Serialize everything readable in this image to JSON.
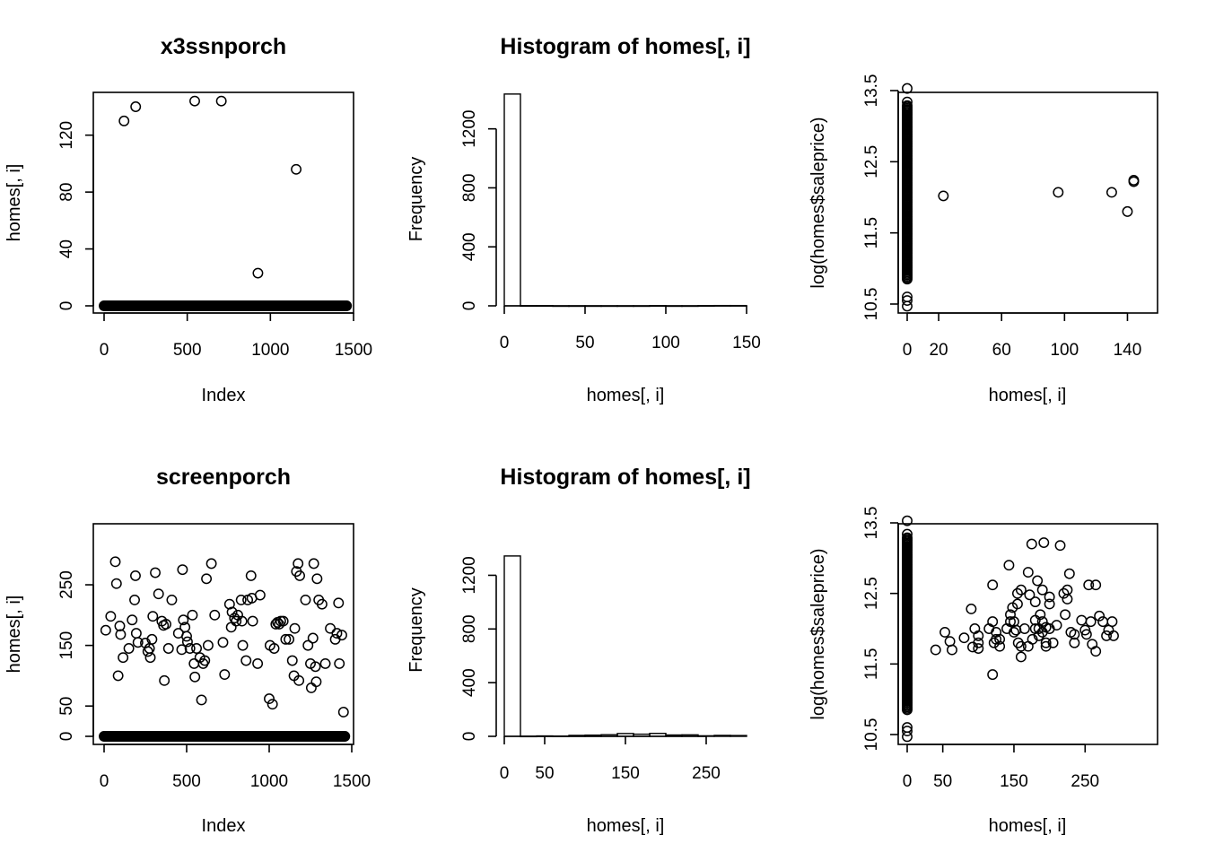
{
  "chart_data": [
    {
      "type": "scatter",
      "title": "x3ssnporch",
      "xlabel": "Index",
      "ylabel": "homes[, i]",
      "xlim": [
        0,
        1500
      ],
      "ylim": [
        0,
        140
      ],
      "xticks": [
        0,
        500,
        1000,
        1500
      ],
      "yticks": [
        0,
        40,
        80,
        120
      ],
      "zero_band": {
        "x_from": 0,
        "x_to": 1460,
        "y": 0
      },
      "points": [
        [
          120,
          130
        ],
        [
          190,
          140
        ],
        [
          545,
          144
        ],
        [
          705,
          144
        ],
        [
          925,
          23
        ],
        [
          1155,
          96
        ]
      ]
    },
    {
      "type": "bar",
      "title": "Histogram of homes[, i]",
      "xlabel": "homes[, i]",
      "ylabel": "Frequency",
      "xlim": [
        0,
        150
      ],
      "ylim": [
        0,
        1350
      ],
      "xticks": [
        0,
        50,
        100,
        150
      ],
      "yticks": [
        0,
        400,
        800,
        1200
      ],
      "bins": [
        [
          0,
          10,
          1436
        ],
        [
          10,
          20,
          1
        ],
        [
          20,
          30,
          1
        ],
        [
          30,
          40,
          0
        ],
        [
          40,
          50,
          0
        ],
        [
          50,
          60,
          0
        ],
        [
          60,
          70,
          0
        ],
        [
          70,
          80,
          0
        ],
        [
          80,
          90,
          0
        ],
        [
          90,
          100,
          1
        ],
        [
          100,
          110,
          0
        ],
        [
          110,
          120,
          0
        ],
        [
          120,
          130,
          1
        ],
        [
          130,
          140,
          2
        ],
        [
          140,
          150,
          2
        ]
      ]
    },
    {
      "type": "scatter",
      "title": "",
      "xlabel": "homes[, i]",
      "ylabel": "log(homes$saleprice)",
      "xlim": [
        0,
        150
      ],
      "ylim": [
        10.5,
        13.5
      ],
      "xticks": [
        0,
        20,
        60,
        100,
        140
      ],
      "yticks": [
        10.5,
        11.5,
        12.5,
        13.5
      ],
      "zero_column": {
        "x": 0,
        "y_from": 10.85,
        "y_to": 13.3
      },
      "points": [
        [
          0,
          13.53
        ],
        [
          0,
          13.34
        ],
        [
          0,
          10.6
        ],
        [
          0,
          10.55
        ],
        [
          0,
          10.47
        ],
        [
          23,
          12.02
        ],
        [
          96,
          12.07
        ],
        [
          130,
          12.07
        ],
        [
          140,
          11.8
        ],
        [
          144,
          12.22
        ],
        [
          144,
          12.24
        ]
      ]
    },
    {
      "type": "scatter",
      "title": "screenporch",
      "xlabel": "Index",
      "ylabel": "homes[, i]",
      "xlim": [
        0,
        1500
      ],
      "ylim": [
        0,
        290
      ],
      "xticks": [
        0,
        500,
        1000,
        1500
      ],
      "yticks": [
        0,
        50,
        150,
        250
      ],
      "zero_band": {
        "x_from": 0,
        "x_to": 1460,
        "y": 0
      },
      "points": [
        [
          10,
          175
        ],
        [
          40,
          198
        ],
        [
          68,
          288
        ],
        [
          75,
          252
        ],
        [
          85,
          100
        ],
        [
          95,
          182
        ],
        [
          100,
          168
        ],
        [
          115,
          130
        ],
        [
          150,
          145
        ],
        [
          170,
          192
        ],
        [
          185,
          225
        ],
        [
          190,
          265
        ],
        [
          195,
          170
        ],
        [
          205,
          155
        ],
        [
          250,
          154
        ],
        [
          265,
          140
        ],
        [
          275,
          145
        ],
        [
          280,
          130
        ],
        [
          290,
          160
        ],
        [
          295,
          198
        ],
        [
          310,
          270
        ],
        [
          330,
          235
        ],
        [
          350,
          190
        ],
        [
          360,
          183
        ],
        [
          365,
          92
        ],
        [
          375,
          185
        ],
        [
          390,
          145
        ],
        [
          410,
          225
        ],
        [
          450,
          170
        ],
        [
          470,
          143
        ],
        [
          475,
          275
        ],
        [
          480,
          192
        ],
        [
          490,
          180
        ],
        [
          500,
          165
        ],
        [
          505,
          156
        ],
        [
          520,
          145
        ],
        [
          535,
          200
        ],
        [
          545,
          120
        ],
        [
          550,
          98
        ],
        [
          560,
          145
        ],
        [
          580,
          130
        ],
        [
          590,
          60
        ],
        [
          600,
          120
        ],
        [
          610,
          125
        ],
        [
          620,
          260
        ],
        [
          630,
          150
        ],
        [
          650,
          285
        ],
        [
          670,
          200
        ],
        [
          720,
          155
        ],
        [
          730,
          102
        ],
        [
          760,
          218
        ],
        [
          770,
          180
        ],
        [
          775,
          205
        ],
        [
          790,
          195
        ],
        [
          800,
          190
        ],
        [
          810,
          200
        ],
        [
          830,
          225
        ],
        [
          835,
          190
        ],
        [
          840,
          150
        ],
        [
          860,
          125
        ],
        [
          870,
          225
        ],
        [
          890,
          265
        ],
        [
          895,
          228
        ],
        [
          900,
          190
        ],
        [
          930,
          120
        ],
        [
          945,
          233
        ],
        [
          1000,
          62
        ],
        [
          1005,
          150
        ],
        [
          1020,
          53
        ],
        [
          1030,
          145
        ],
        [
          1040,
          185
        ],
        [
          1050,
          188
        ],
        [
          1060,
          185
        ],
        [
          1070,
          190
        ],
        [
          1085,
          190
        ],
        [
          1100,
          160
        ],
        [
          1120,
          160
        ],
        [
          1140,
          125
        ],
        [
          1150,
          100
        ],
        [
          1155,
          178
        ],
        [
          1165,
          272
        ],
        [
          1175,
          285
        ],
        [
          1180,
          92
        ],
        [
          1185,
          265
        ],
        [
          1220,
          225
        ],
        [
          1235,
          150
        ],
        [
          1250,
          120
        ],
        [
          1255,
          80
        ],
        [
          1265,
          162
        ],
        [
          1270,
          285
        ],
        [
          1280,
          115
        ],
        [
          1285,
          90
        ],
        [
          1290,
          260
        ],
        [
          1300,
          225
        ],
        [
          1320,
          218
        ],
        [
          1340,
          120
        ],
        [
          1370,
          178
        ],
        [
          1400,
          160
        ],
        [
          1410,
          170
        ],
        [
          1420,
          220
        ],
        [
          1425,
          120
        ],
        [
          1440,
          167
        ],
        [
          1450,
          40
        ]
      ]
    },
    {
      "type": "bar",
      "title": "Histogram of homes[, i]",
      "xlabel": "homes[, i]",
      "ylabel": "Frequency",
      "xlim": [
        0,
        300
      ],
      "ylim": [
        0,
        1350
      ],
      "xticks": [
        0,
        50,
        150,
        250
      ],
      "yticks": [
        0,
        400,
        800,
        1200
      ],
      "bins": [
        [
          0,
          20,
          1344
        ],
        [
          20,
          40,
          1
        ],
        [
          40,
          60,
          3
        ],
        [
          60,
          80,
          2
        ],
        [
          80,
          100,
          7
        ],
        [
          100,
          120,
          9
        ],
        [
          120,
          140,
          12
        ],
        [
          140,
          160,
          21
        ],
        [
          160,
          180,
          16
        ],
        [
          180,
          200,
          22
        ],
        [
          200,
          220,
          10
        ],
        [
          220,
          240,
          11
        ],
        [
          240,
          260,
          4
        ],
        [
          260,
          280,
          7
        ],
        [
          280,
          300,
          6
        ]
      ]
    },
    {
      "type": "scatter",
      "title": "",
      "xlabel": "homes[, i]",
      "ylabel": "log(homes$saleprice)",
      "xlim": [
        0,
        290
      ],
      "ylim": [
        10.5,
        13.5
      ],
      "xticks": [
        0,
        50,
        150,
        250
      ],
      "yticks": [
        10.5,
        11.5,
        12.5,
        13.5
      ],
      "zero_column": {
        "x": 0,
        "y_from": 10.85,
        "y_to": 13.3
      },
      "points": [
        [
          0,
          13.53
        ],
        [
          0,
          13.34
        ],
        [
          0,
          10.6
        ],
        [
          0,
          10.55
        ],
        [
          0,
          10.47
        ],
        [
          40,
          11.7
        ],
        [
          53,
          11.95
        ],
        [
          60,
          11.82
        ],
        [
          63,
          11.7
        ],
        [
          80,
          11.87
        ],
        [
          90,
          12.28
        ],
        [
          92,
          11.74
        ],
        [
          95,
          12.0
        ],
        [
          100,
          11.72
        ],
        [
          100,
          11.8
        ],
        [
          100,
          11.9
        ],
        [
          115,
          12.0
        ],
        [
          120,
          11.35
        ],
        [
          120,
          12.1
        ],
        [
          120,
          12.62
        ],
        [
          122,
          11.8
        ],
        [
          125,
          11.85
        ],
        [
          125,
          11.95
        ],
        [
          130,
          11.75
        ],
        [
          130,
          11.85
        ],
        [
          140,
          12.0
        ],
        [
          143,
          12.9
        ],
        [
          145,
          12.2
        ],
        [
          145,
          12.1
        ],
        [
          148,
          12.3
        ],
        [
          150,
          11.95
        ],
        [
          150,
          12.1
        ],
        [
          153,
          11.98
        ],
        [
          155,
          12.35
        ],
        [
          155,
          12.5
        ],
        [
          156,
          11.8
        ],
        [
          160,
          11.6
        ],
        [
          160,
          11.75
        ],
        [
          160,
          12.55
        ],
        [
          165,
          12.0
        ],
        [
          170,
          11.75
        ],
        [
          170,
          12.8
        ],
        [
          172,
          12.48
        ],
        [
          175,
          13.2
        ],
        [
          176,
          11.85
        ],
        [
          180,
          12.0
        ],
        [
          180,
          12.12
        ],
        [
          180,
          12.38
        ],
        [
          183,
          12.68
        ],
        [
          185,
          11.9
        ],
        [
          185,
          12.0
        ],
        [
          187,
          12.2
        ],
        [
          190,
          11.95
        ],
        [
          190,
          12.1
        ],
        [
          190,
          12.55
        ],
        [
          192,
          13.22
        ],
        [
          195,
          11.75
        ],
        [
          195,
          11.8
        ],
        [
          195,
          12.02
        ],
        [
          200,
          12.35
        ],
        [
          200,
          12.45
        ],
        [
          200,
          12.0
        ],
        [
          205,
          11.8
        ],
        [
          210,
          12.05
        ],
        [
          215,
          13.18
        ],
        [
          220,
          12.5
        ],
        [
          222,
          12.2
        ],
        [
          225,
          12.42
        ],
        [
          225,
          12.55
        ],
        [
          228,
          12.78
        ],
        [
          230,
          11.95
        ],
        [
          235,
          11.8
        ],
        [
          235,
          11.92
        ],
        [
          245,
          12.12
        ],
        [
          250,
          11.98
        ],
        [
          252,
          11.92
        ],
        [
          255,
          12.62
        ],
        [
          258,
          12.1
        ],
        [
          260,
          11.78
        ],
        [
          265,
          12.62
        ],
        [
          265,
          11.68
        ],
        [
          270,
          12.18
        ],
        [
          275,
          12.1
        ],
        [
          280,
          11.9
        ],
        [
          283,
          11.98
        ],
        [
          288,
          12.1
        ],
        [
          290,
          11.9
        ]
      ]
    }
  ]
}
